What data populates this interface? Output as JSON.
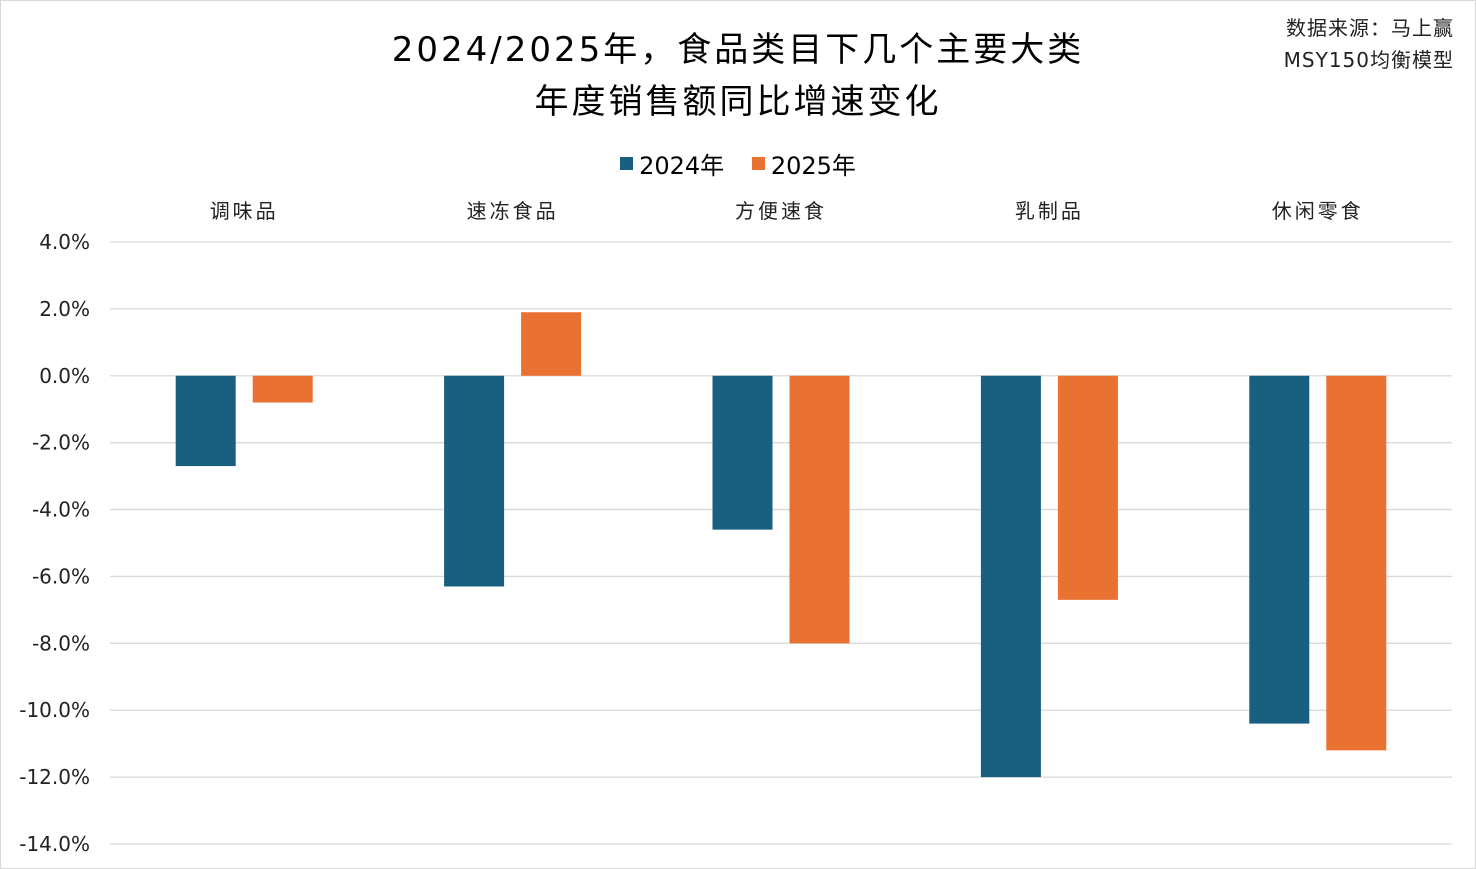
{
  "chart_data": {
    "type": "bar",
    "title": [
      "2024/2025年，食品类目下几个主要大类",
      "年度销售额同比增速变化"
    ],
    "source": [
      "数据来源：马上赢",
      "MSY150均衡模型"
    ],
    "categories": [
      "调味品",
      "速冻食品",
      "方便速食",
      "乳制品",
      "休闲零食"
    ],
    "series": [
      {
        "name": "2024年",
        "color": "#185F80",
        "values": [
          -2.7,
          -6.3,
          -4.6,
          -12.0,
          -10.4
        ]
      },
      {
        "name": "2025年",
        "color": "#E97132",
        "values": [
          -0.8,
          1.9,
          -8.0,
          -6.7,
          -11.2
        ]
      }
    ],
    "ylim": [
      -14,
      4
    ],
    "yticks": [
      "4.0%",
      "2.0%",
      "0.0%",
      "-2.0%",
      "-4.0%",
      "-6.0%",
      "-8.0%",
      "-10.0%",
      "-12.0%",
      "-14.0%"
    ],
    "grid": true,
    "legend": "top",
    "category_labels_position": "top"
  }
}
